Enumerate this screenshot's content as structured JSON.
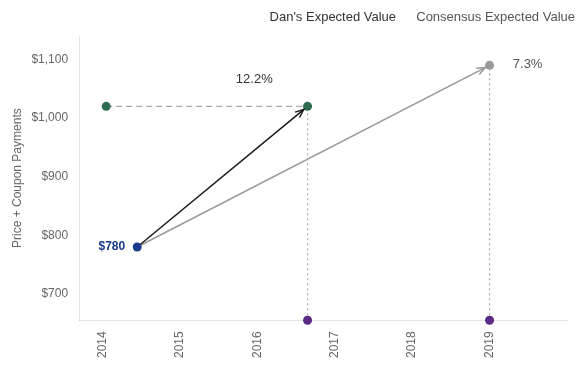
{
  "chart_data": {
    "type": "scatter",
    "title": [
      "Dan's Expected Value",
      "Consensus Expected Value"
    ],
    "ylabel": "Price + Coupon Payments",
    "xlim": [
      2013.7,
      2020.0
    ],
    "ylim": [
      655,
      1140
    ],
    "xticks": [
      2014,
      2015,
      2016,
      2017,
      2018,
      2019
    ],
    "yticks": [
      {
        "value": 700,
        "label": "$700"
      },
      {
        "value": 800,
        "label": "$800"
      },
      {
        "value": 900,
        "label": "$900"
      },
      {
        "value": 1000,
        "label": "$1,000"
      },
      {
        "value": 1100,
        "label": "$1,100"
      }
    ],
    "grid": false,
    "series": [
      {
        "x": [
          2014.05,
          2016.65
        ],
        "values": [
          1020,
          1020
        ],
        "color": "#aaaaaa",
        "line_style": "dashed",
        "marker": "none"
      },
      {
        "x": [
          2016.65,
          2016.65
        ],
        "values": [
          655,
          1020
        ],
        "color": "#aaaaaa",
        "line_style": "dotted",
        "marker": "none"
      },
      {
        "x": [
          2019.0,
          2019.0
        ],
        "values": [
          655,
          1090
        ],
        "color": "#aaaaaa",
        "line_style": "dotted",
        "marker": "none"
      },
      {
        "x": [
          2014.45,
          2016.65
        ],
        "values": [
          780,
          1020
        ],
        "color": "#1a1a1a",
        "line_style": "arrow",
        "marker": "none"
      },
      {
        "x": [
          2014.45,
          2019.0
        ],
        "values": [
          780,
          1090
        ],
        "color": "#999999",
        "line_style": "arrow",
        "marker": "none"
      },
      {
        "x": [
          2016.65,
          2019.0
        ],
        "values": [
          655,
          655
        ],
        "color": "#5c2a84",
        "line_style": "none",
        "marker": "circle"
      },
      {
        "x": [
          2014.05,
          2016.65
        ],
        "values": [
          1020,
          1020
        ],
        "color": "#2e6b4f",
        "line_style": "none",
        "marker": "circle"
      },
      {
        "x": [
          2014.45
        ],
        "values": [
          780
        ],
        "value_labels": [
          "$780"
        ],
        "data_labels": true,
        "color": "#1a3a8c",
        "line_style": "none",
        "marker": "circle"
      },
      {
        "x": [
          2019.0
        ],
        "values": [
          1090
        ],
        "color": "#999999",
        "line_style": "none",
        "marker": "circle"
      }
    ],
    "annotations": [
      {
        "text": "12.2%",
        "x": 2016.2,
        "y": 1055
      },
      {
        "text": "7.3%",
        "x": 2019.3,
        "y": 1092
      }
    ]
  }
}
